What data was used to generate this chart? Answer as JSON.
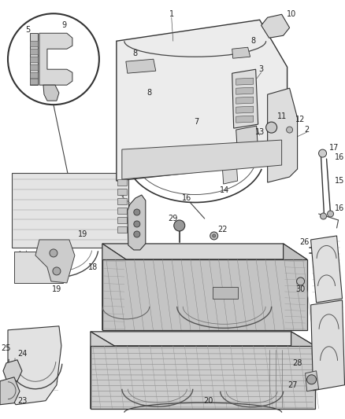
{
  "bg_color": "#ffffff",
  "fig_width": 4.38,
  "fig_height": 5.33,
  "dpi": 100,
  "label_fs": 7.0,
  "label_color": "#222222"
}
